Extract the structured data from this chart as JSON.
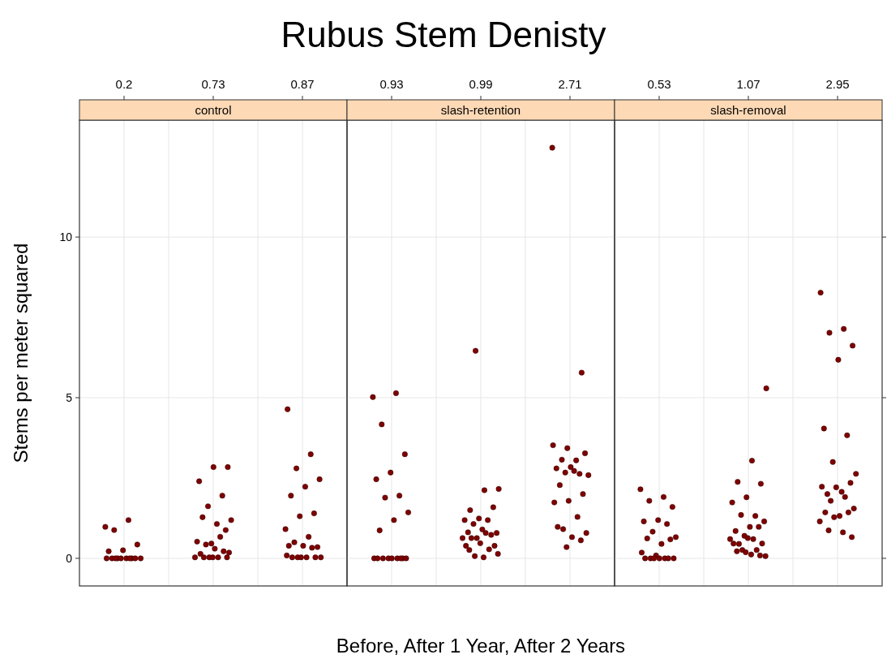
{
  "chart_data": [
    {
      "type": "scatter",
      "subtitle": "control",
      "ylabel": "Stems per meter squared",
      "categories": [
        "0.2",
        "0.73",
        "0.87"
      ],
      "ylim": [
        -0.86,
        13.64
      ],
      "yticks": [
        0,
        5,
        10
      ],
      "grid": true,
      "marker": "circle",
      "series": [
        {
          "color": "#7f0000",
          "x": [
            "0.2",
            "0.2",
            "0.2",
            "0.2",
            "0.2",
            "0.2",
            "0.2",
            "0.2",
            "0.2",
            "0.2",
            "0.2",
            "0.2",
            "0.2",
            "0.2",
            "0.2",
            "0.2",
            "0.73",
            "0.73",
            "0.73",
            "0.73",
            "0.73",
            "0.73",
            "0.73",
            "0.73",
            "0.73",
            "0.73",
            "0.73",
            "0.73",
            "0.73",
            "0.73",
            "0.73",
            "0.73",
            "0.73",
            "0.73",
            "0.73",
            "0.73",
            "0.73",
            "0.73",
            "0.73",
            "0.87",
            "0.87",
            "0.87",
            "0.87",
            "0.87",
            "0.87",
            "0.87",
            "0.87",
            "0.87",
            "0.87",
            "0.87",
            "0.87",
            "0.87",
            "0.87",
            "0.87",
            "0.87",
            "0.87",
            "0.87",
            "0.87",
            "0.87",
            "0.87",
            "0.87"
          ],
          "values": [
            0.98,
            1.19,
            0.88,
            0.43,
            0.25,
            0.22,
            0,
            0,
            0,
            0,
            0,
            0,
            0,
            0,
            0,
            0,
            2.84,
            2.84,
            2.4,
            1.95,
            1.62,
            1.19,
            1.07,
            1.28,
            0.88,
            0.46,
            0.52,
            0.67,
            0.43,
            0.18,
            0.3,
            0.14,
            0.22,
            0.03,
            0.03,
            0.03,
            0.03,
            0.03,
            0.03,
            4.64,
            3.24,
            2.8,
            2.46,
            2.23,
            1.95,
            1.4,
            1.31,
            0.91,
            0.67,
            0.5,
            0.35,
            0.39,
            0.39,
            0.33,
            0.03,
            0.03,
            0.03,
            0.03,
            0.03,
            0.03,
            0.09
          ]
        }
      ]
    },
    {
      "type": "scatter",
      "title": "Rubus Stem Denisty",
      "subtitle": "slash-retention",
      "xlabel": "Before, After 1 Year, After 2 Years",
      "categories": [
        "0.93",
        "0.99",
        "2.71"
      ],
      "ylim": [
        -0.86,
        13.64
      ],
      "yticks": [
        0,
        5,
        10
      ],
      "grid": true,
      "marker": "circle",
      "tick_labels": "x",
      "series": [
        {
          "color": "#7f0000",
          "x": [
            "0.93",
            "0.93",
            "0.93",
            "0.93",
            "0.93",
            "0.93",
            "0.93",
            "0.93",
            "0.93",
            "0.93",
            "0.93",
            "0.93",
            "0.93",
            "0.93",
            "0.93",
            "0.93",
            "0.93",
            "0.93",
            "0.93",
            "0.93",
            "0.99",
            "0.99",
            "0.99",
            "0.99",
            "0.99",
            "0.99",
            "0.99",
            "0.99",
            "0.99",
            "0.99",
            "0.99",
            "0.99",
            "0.99",
            "0.99",
            "0.99",
            "0.99",
            "0.99",
            "0.99",
            "0.99",
            "0.99",
            "0.99",
            "0.99",
            "0.99",
            "0.99",
            "0.99",
            "2.71",
            "2.71",
            "2.71",
            "2.71",
            "2.71",
            "2.71",
            "2.71",
            "2.71",
            "2.71",
            "2.71",
            "2.71",
            "2.71",
            "2.71",
            "2.71",
            "2.71",
            "2.71",
            "2.71",
            "2.71",
            "2.71",
            "2.71",
            "2.71",
            "2.71",
            "2.71",
            "2.71"
          ],
          "values": [
            5.02,
            5.14,
            4.17,
            3.24,
            2.67,
            2.46,
            1.95,
            1.89,
            1.43,
            1.19,
            0.87,
            0,
            0,
            0,
            0,
            0,
            0,
            0,
            0,
            0,
            6.46,
            2.16,
            2.12,
            1.5,
            1.59,
            1.24,
            1.19,
            1.19,
            1.07,
            0.79,
            0.9,
            0.81,
            0.73,
            0.63,
            0.63,
            0.79,
            0.63,
            0.39,
            0.47,
            0.39,
            0.28,
            0.07,
            0.14,
            0.03,
            0.26,
            5.78,
            3.43,
            3.52,
            3.05,
            3.07,
            3.27,
            2.84,
            2.8,
            2.63,
            2.67,
            2.59,
            2.72,
            2.28,
            2.0,
            1.79,
            1.74,
            1.29,
            0.91,
            0.79,
            0.66,
            0.98,
            0.56,
            0.35,
            12.78
          ]
        }
      ]
    },
    {
      "type": "scatter",
      "subtitle": "slash-removal",
      "categories": [
        "0.53",
        "1.07",
        "2.95"
      ],
      "ylim": [
        -0.86,
        13.64
      ],
      "yticks": [
        0,
        5,
        10
      ],
      "grid": true,
      "marker": "circle",
      "tick_labels": "x",
      "series": [
        {
          "color": "#7f0000",
          "x": [
            "0.53",
            "0.53",
            "0.53",
            "0.53",
            "0.53",
            "0.53",
            "0.53",
            "0.53",
            "0.53",
            "0.53",
            "0.53",
            "0.53",
            "0.53",
            "0.53",
            "0.53",
            "0.53",
            "0.53",
            "0.53",
            "0.53",
            "0.53",
            "0.53",
            "1.07",
            "1.07",
            "1.07",
            "1.07",
            "1.07",
            "1.07",
            "1.07",
            "1.07",
            "1.07",
            "1.07",
            "1.07",
            "1.07",
            "1.07",
            "1.07",
            "1.07",
            "1.07",
            "1.07",
            "1.07",
            "1.07",
            "1.07",
            "1.07",
            "1.07",
            "1.07",
            "1.07",
            "1.07",
            "1.07",
            "2.95",
            "2.95",
            "2.95",
            "2.95",
            "2.95",
            "2.95",
            "2.95",
            "2.95",
            "2.95",
            "2.95",
            "2.95",
            "2.95",
            "2.95",
            "2.95",
            "2.95",
            "2.95",
            "2.95",
            "2.95",
            "2.95",
            "2.95",
            "2.95",
            "2.95",
            "2.95",
            "2.95",
            "2.95"
          ],
          "values": [
            2.15,
            1.91,
            1.79,
            1.6,
            1.19,
            1.15,
            1.07,
            0.83,
            0.66,
            0.45,
            0.62,
            0.59,
            0.09,
            0.18,
            0,
            0,
            0,
            0,
            0,
            0,
            0,
            5.29,
            3.04,
            2.38,
            2.32,
            1.9,
            1.74,
            1.32,
            1.35,
            1.15,
            0.98,
            0.85,
            0.98,
            0.7,
            0.6,
            0.6,
            0.45,
            0.46,
            0.63,
            0.46,
            0.26,
            0.26,
            0.07,
            0.12,
            0.22,
            0.09,
            0.19,
            8.27,
            7.14,
            7.02,
            6.62,
            6.18,
            4.04,
            3.83,
            3.0,
            2.63,
            2.07,
            2.0,
            2.35,
            2.21,
            2.23,
            1.91,
            1.79,
            1.55,
            1.32,
            1.43,
            1.43,
            1.28,
            1.15,
            0.81,
            0.87,
            0.66
          ]
        }
      ]
    }
  ]
}
